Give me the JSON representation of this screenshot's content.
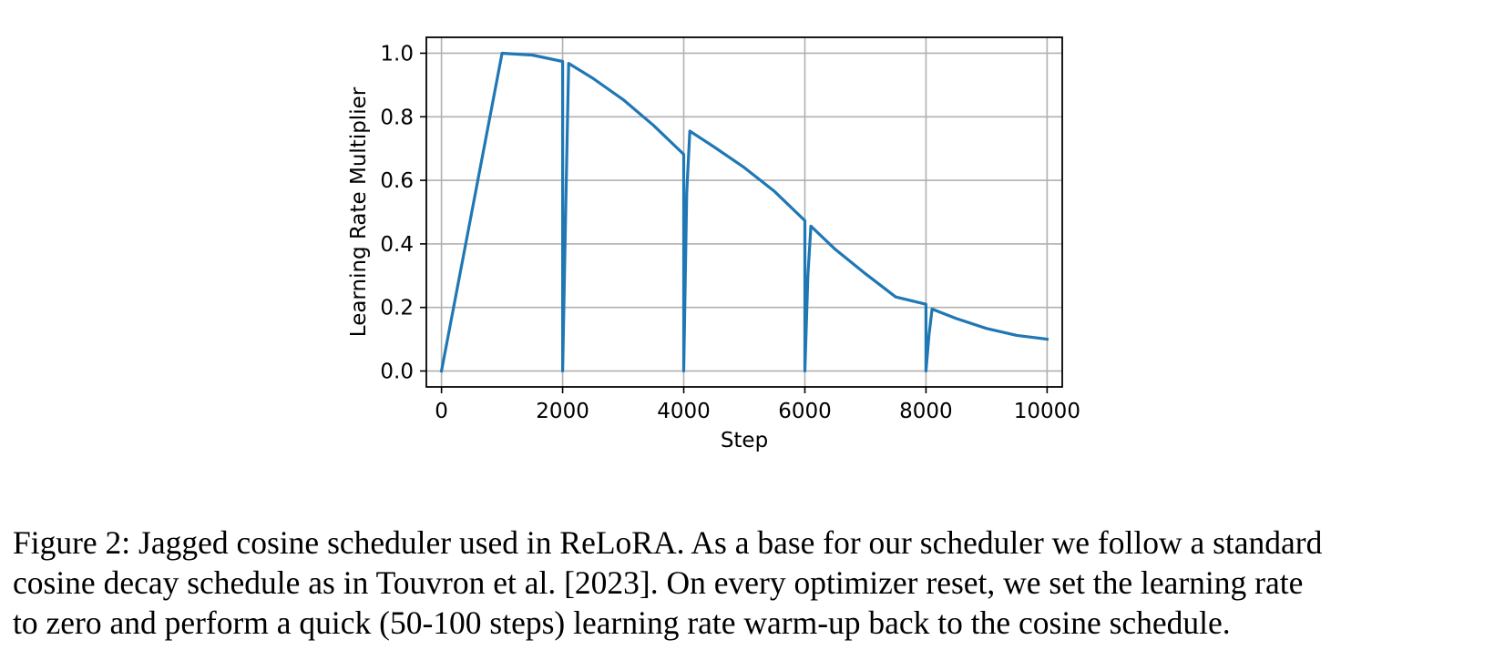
{
  "chart_data": {
    "type": "line",
    "xlabel": "Step",
    "ylabel": "Learning Rate Multiplier",
    "xlim": [
      -250,
      10250
    ],
    "ylim": [
      -0.05,
      1.05
    ],
    "xticks": [
      0,
      2000,
      4000,
      6000,
      8000,
      10000
    ],
    "xtick_labels": [
      "0",
      "2000",
      "4000",
      "6000",
      "8000",
      "10000"
    ],
    "yticks": [
      0.0,
      0.2,
      0.4,
      0.6,
      0.8,
      1.0
    ],
    "ytick_labels": [
      "0.0",
      "0.2",
      "0.4",
      "0.6",
      "0.8",
      "1.0"
    ],
    "grid": true,
    "series": [
      {
        "color": "#1f77b4",
        "x": [
          0,
          1000,
          1500,
          2000,
          2000,
          2050,
          2100,
          2500,
          3000,
          3500,
          4000,
          4000,
          4050,
          4100,
          4500,
          5000,
          5500,
          6000,
          6000,
          6050,
          6100,
          6500,
          7000,
          7500,
          8000,
          8000,
          8050,
          8100,
          8500,
          9000,
          9500,
          10000
        ],
        "y": [
          0.0,
          1.0,
          0.994,
          0.974,
          0.0,
          0.5,
          0.968,
          0.921,
          0.854,
          0.773,
          0.682,
          0.0,
          0.56,
          0.755,
          0.705,
          0.64,
          0.565,
          0.473,
          0.0,
          0.3,
          0.456,
          0.383,
          0.306,
          0.233,
          0.21,
          0.0,
          0.115,
          0.195,
          0.165,
          0.134,
          0.112,
          0.1
        ]
      }
    ]
  },
  "caption": {
    "lines": [
      "Figure 2: Jagged cosine scheduler used in ReLoRA. As a base for our scheduler we follow a standard",
      "cosine decay schedule as in Touvron et al. [2023]. On every optimizer reset, we set the learning rate",
      "to zero and perform a quick (50-100 steps) learning rate warm-up back to the cosine schedule."
    ]
  }
}
